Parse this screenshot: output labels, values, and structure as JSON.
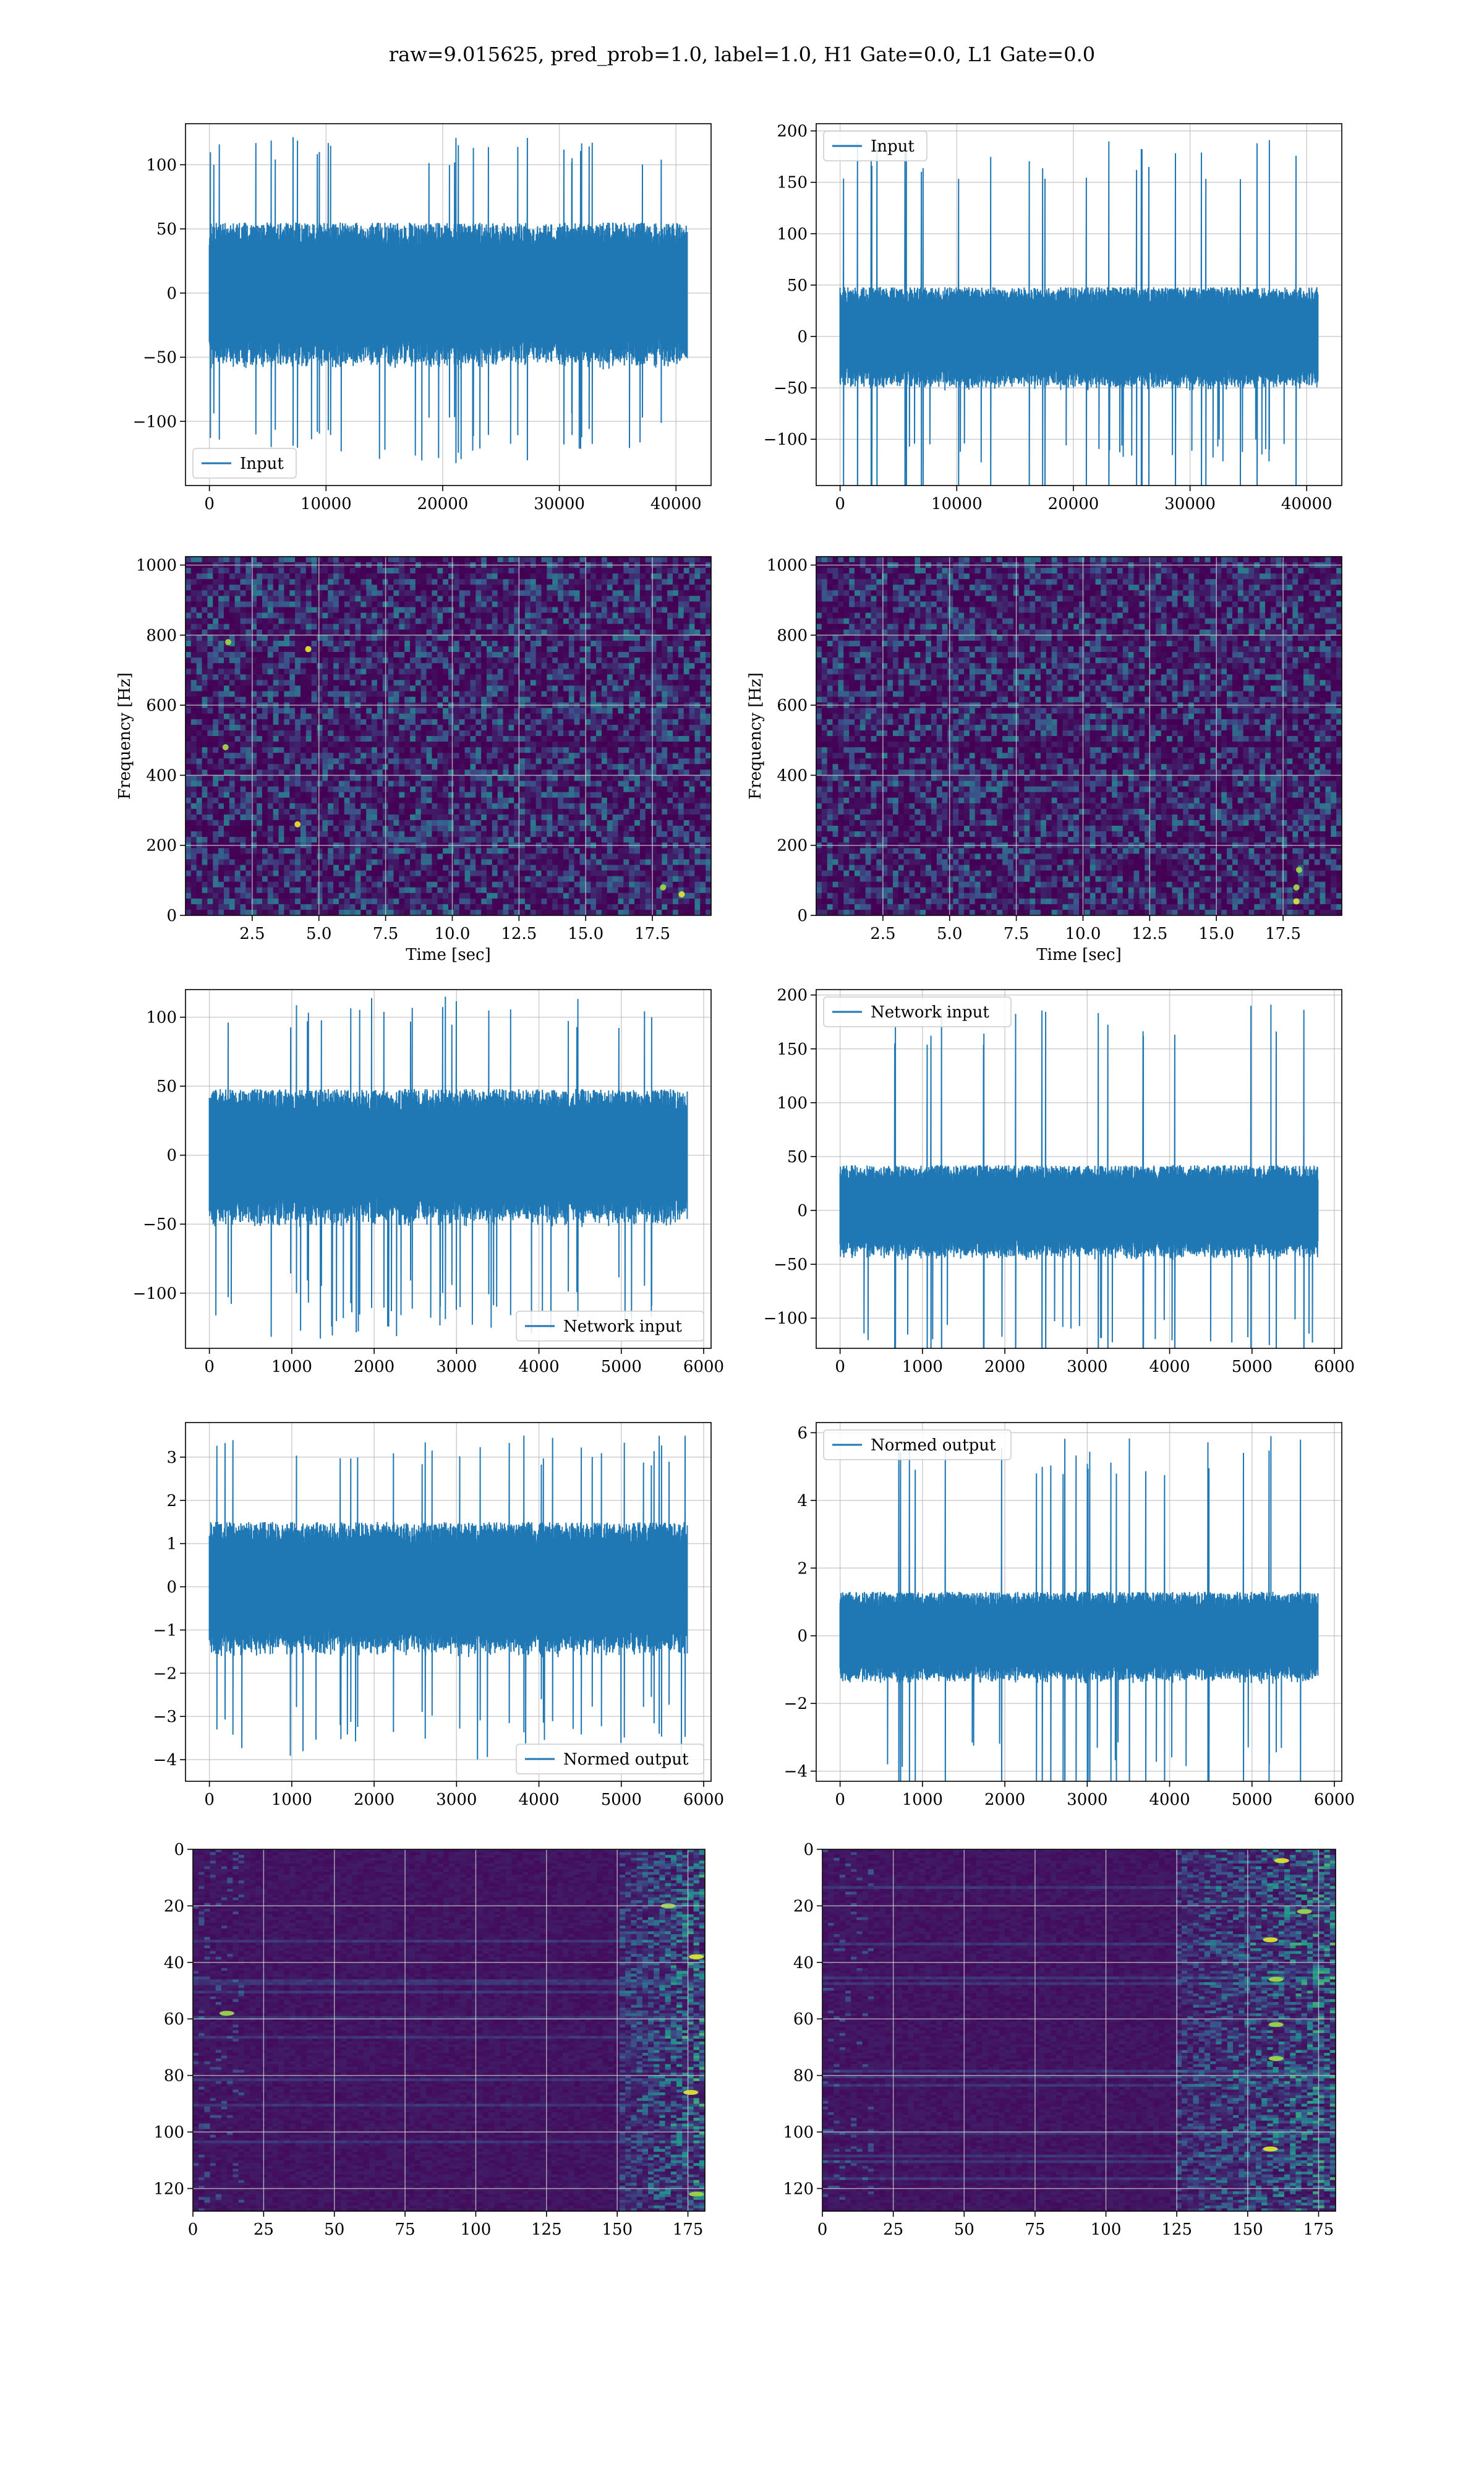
{
  "figure": {
    "title": "raw=9.015625, pred_prob=1.0, label=1.0, H1 Gate=0.0, L1 Gate=0.0",
    "colors": {
      "line": "#1f77b4",
      "grid": "#b0b0b0",
      "viridis_low": "#440154",
      "viridis_mid": "#21918c",
      "viridis_high": "#fde725"
    }
  },
  "chart_data": [
    {
      "id": "raw-h1",
      "type": "line",
      "legend": [
        "Input"
      ],
      "legend_loc": "lower-left",
      "xlim": [
        -2048,
        43008
      ],
      "ylim": [
        -150,
        132
      ],
      "xticks": [
        0,
        10000,
        20000,
        30000,
        40000
      ],
      "xtick_labels": [
        "0",
        "10000",
        "20000",
        "30000",
        "40000"
      ],
      "yticks": [
        -100,
        -50,
        0,
        50,
        100
      ],
      "ytick_labels": [
        "−100",
        "−50",
        "0",
        "50",
        "100"
      ],
      "xlabel": "",
      "ylabel": "",
      "series": [
        {
          "n_samples": 40960,
          "amp_typical": 55,
          "amp_min": -135,
          "amp_max": 122,
          "spikes": []
        }
      ]
    },
    {
      "id": "raw-l1",
      "type": "line",
      "legend": [
        "Input"
      ],
      "legend_loc": "upper-left",
      "xlim": [
        -2048,
        43008
      ],
      "ylim": [
        -145,
        207
      ],
      "xticks": [
        0,
        10000,
        20000,
        30000,
        40000
      ],
      "xtick_labels": [
        "0",
        "10000",
        "20000",
        "30000",
        "40000"
      ],
      "yticks": [
        -100,
        -50,
        0,
        50,
        100,
        150,
        200
      ],
      "ytick_labels": [
        "−100",
        "−50",
        "0",
        "50",
        "100",
        "150",
        "200"
      ],
      "xlabel": "",
      "ylabel": "",
      "series": [
        {
          "n_samples": 40960,
          "amp_typical": 48,
          "amp_min": -125,
          "amp_max": 191,
          "spikes": [
            [
              36800,
              191
            ],
            [
              36800,
              -110
            ]
          ]
        }
      ]
    },
    {
      "id": "spec-h1",
      "type": "heatmap",
      "xlim": [
        0,
        19.7
      ],
      "ylim": [
        0,
        1024
      ],
      "xticks": [
        2.5,
        5.0,
        7.5,
        10.0,
        12.5,
        15.0,
        17.5
      ],
      "xtick_labels": [
        "2.5",
        "5.0",
        "7.5",
        "10.0",
        "12.5",
        "15.0",
        "17.5"
      ],
      "yticks": [
        0,
        200,
        400,
        600,
        800,
        1000
      ],
      "ytick_labels": [
        "0",
        "200",
        "400",
        "600",
        "800",
        "1000"
      ],
      "xlabel": "Time [sec]",
      "ylabel": "Frequency [Hz]",
      "features": {
        "dark_band_hz": 490,
        "top_band_hz": 1000,
        "hot_spots": [
          [
            1.6,
            780
          ],
          [
            4.6,
            760
          ],
          [
            1.5,
            480
          ],
          [
            18.6,
            60
          ],
          [
            17.9,
            80
          ],
          [
            4.2,
            260
          ]
        ]
      }
    },
    {
      "id": "spec-l1",
      "type": "heatmap",
      "xlim": [
        0,
        19.7
      ],
      "ylim": [
        0,
        1024
      ],
      "xticks": [
        2.5,
        5.0,
        7.5,
        10.0,
        12.5,
        15.0,
        17.5
      ],
      "xtick_labels": [
        "2.5",
        "5.0",
        "7.5",
        "10.0",
        "12.5",
        "15.0",
        "17.5"
      ],
      "yticks": [
        0,
        200,
        400,
        600,
        800,
        1000
      ],
      "ytick_labels": [
        "0",
        "200",
        "400",
        "600",
        "800",
        "1000"
      ],
      "xlabel": "Time [sec]",
      "ylabel": "Frequency [Hz]",
      "features": {
        "dark_band_hz": 490,
        "top_band_hz": 1000,
        "hot_spots": [
          [
            18.0,
            80
          ],
          [
            18.0,
            40
          ],
          [
            18.1,
            130
          ]
        ]
      }
    },
    {
      "id": "net-h1",
      "type": "line",
      "legend": [
        "Network input"
      ],
      "legend_loc": "lower-right",
      "xlim": [
        -290,
        6090
      ],
      "ylim": [
        -140,
        120
      ],
      "xticks": [
        0,
        1000,
        2000,
        3000,
        4000,
        5000,
        6000
      ],
      "xtick_labels": [
        "0",
        "1000",
        "2000",
        "3000",
        "4000",
        "5000",
        "6000"
      ],
      "yticks": [
        -100,
        -50,
        0,
        50,
        100
      ],
      "ytick_labels": [
        "−100",
        "−50",
        "0",
        "50",
        "100"
      ],
      "xlabel": "",
      "ylabel": "",
      "series": [
        {
          "n_samples": 5800,
          "amp_typical": 48,
          "amp_min": -133,
          "amp_max": 115,
          "spikes": []
        }
      ]
    },
    {
      "id": "net-l1",
      "type": "line",
      "legend": [
        "Network input"
      ],
      "legend_loc": "upper-left",
      "xlim": [
        -290,
        6090
      ],
      "ylim": [
        -128,
        205
      ],
      "xticks": [
        0,
        1000,
        2000,
        3000,
        4000,
        5000,
        6000
      ],
      "xtick_labels": [
        "0",
        "1000",
        "2000",
        "3000",
        "4000",
        "5000",
        "6000"
      ],
      "yticks": [
        -100,
        -50,
        0,
        50,
        100,
        150,
        200
      ],
      "ytick_labels": [
        "−100",
        "−50",
        "0",
        "50",
        "100",
        "150",
        "200"
      ],
      "xlabel": "",
      "ylabel": "",
      "series": [
        {
          "n_samples": 5800,
          "amp_typical": 42,
          "amp_min": -125,
          "amp_max": 191,
          "spikes": [
            [
              5230,
              191
            ],
            [
              5210,
              -125
            ]
          ]
        }
      ]
    },
    {
      "id": "norm-h1",
      "type": "line",
      "legend": [
        "Normed output"
      ],
      "legend_loc": "lower-right",
      "xlim": [
        -290,
        6090
      ],
      "ylim": [
        -4.5,
        3.8
      ],
      "xticks": [
        0,
        1000,
        2000,
        3000,
        4000,
        5000,
        6000
      ],
      "xtick_labels": [
        "0",
        "1000",
        "2000",
        "3000",
        "4000",
        "5000",
        "6000"
      ],
      "yticks": [
        -4,
        -3,
        -2,
        -1,
        0,
        1,
        2,
        3
      ],
      "ytick_labels": [
        "−4",
        "−3",
        "−2",
        "−1",
        "0",
        "1",
        "2",
        "3"
      ],
      "xlabel": "",
      "ylabel": "",
      "series": [
        {
          "n_samples": 5800,
          "amp_typical": 1.5,
          "amp_min": -4.1,
          "amp_max": 3.5,
          "spikes": []
        }
      ]
    },
    {
      "id": "norm-l1",
      "type": "line",
      "legend": [
        "Normed output"
      ],
      "legend_loc": "upper-left",
      "xlim": [
        -290,
        6090
      ],
      "ylim": [
        -4.3,
        6.3
      ],
      "xticks": [
        0,
        1000,
        2000,
        3000,
        4000,
        5000,
        6000
      ],
      "xtick_labels": [
        "0",
        "1000",
        "2000",
        "3000",
        "4000",
        "5000",
        "6000"
      ],
      "yticks": [
        -4,
        -2,
        0,
        2,
        4,
        6
      ],
      "ytick_labels": [
        "−4",
        "−2",
        "0",
        "2",
        "4",
        "6"
      ],
      "xlabel": "",
      "ylabel": "",
      "series": [
        {
          "n_samples": 5800,
          "amp_typical": 1.3,
          "amp_min": -3.9,
          "amp_max": 5.9,
          "spikes": [
            [
              5230,
              5.9
            ],
            [
              5210,
              -3.8
            ]
          ]
        }
      ]
    },
    {
      "id": "feat-h1",
      "type": "heatmap",
      "xlim": [
        0,
        181
      ],
      "ylim": [
        128,
        0
      ],
      "xticks": [
        0,
        25,
        50,
        75,
        100,
        125,
        150,
        175
      ],
      "xtick_labels": [
        "0",
        "25",
        "50",
        "75",
        "100",
        "125",
        "150",
        "175"
      ],
      "yticks": [
        0,
        20,
        40,
        60,
        80,
        100,
        120
      ],
      "ytick_labels": [
        "0",
        "20",
        "40",
        "60",
        "80",
        "100",
        "120"
      ],
      "xlabel": "",
      "ylabel": "",
      "features": {
        "hot_region_x": [
          150,
          181
        ],
        "hot_spots": [
          [
            178,
            122
          ],
          [
            176,
            86
          ],
          [
            12,
            58
          ],
          [
            178,
            38
          ],
          [
            168,
            20
          ]
        ]
      }
    },
    {
      "id": "feat-l1",
      "type": "heatmap",
      "xlim": [
        0,
        181
      ],
      "ylim": [
        128,
        0
      ],
      "xticks": [
        0,
        25,
        50,
        75,
        100,
        125,
        150,
        175
      ],
      "xtick_labels": [
        "0",
        "25",
        "50",
        "75",
        "100",
        "125",
        "150",
        "175"
      ],
      "yticks": [
        0,
        20,
        40,
        60,
        80,
        100,
        120
      ],
      "ytick_labels": [
        "0",
        "20",
        "40",
        "60",
        "80",
        "100",
        "120"
      ],
      "xlabel": "",
      "ylabel": "",
      "features": {
        "hot_region_x": [
          125,
          181
        ],
        "hot_spots": [
          [
            160,
            62
          ],
          [
            158,
            32
          ],
          [
            160,
            46
          ],
          [
            162,
            4
          ],
          [
            170,
            22
          ],
          [
            158,
            106
          ],
          [
            160,
            74
          ]
        ]
      }
    }
  ]
}
